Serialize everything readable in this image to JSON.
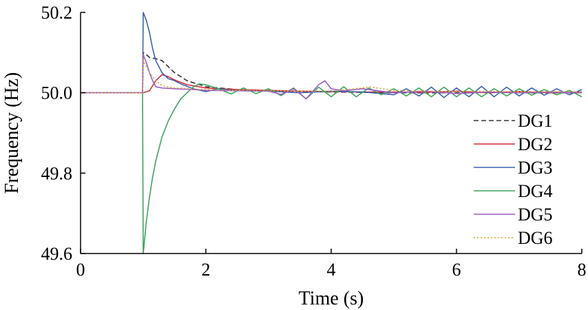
{
  "chart_data": {
    "type": "line",
    "xlabel": "Time (s)",
    "ylabel": "Frequency (Hz)",
    "xlim": [
      0,
      8
    ],
    "ylim": [
      49.6,
      50.2
    ],
    "x_ticks": [
      0,
      2,
      4,
      6,
      8
    ],
    "x_tick_labels": [
      "0",
      "2",
      "4",
      "6",
      "8"
    ],
    "y_ticks": [
      49.6,
      49.8,
      50.0,
      50.2
    ],
    "y_tick_labels": [
      "49.6",
      "49.8",
      "50.0",
      "50.2"
    ],
    "grid": false,
    "legend_position": "right",
    "series": [
      {
        "name": "DG1",
        "color": "#333333",
        "style": "dashed",
        "x": [
          0,
          0.99,
          1.0,
          1.05,
          1.1,
          1.2,
          1.3,
          1.4,
          1.5,
          1.7,
          2.0,
          2.5,
          3.0,
          3.5,
          4.0,
          4.5,
          5.0,
          5.5,
          6.0,
          6.5,
          7.0,
          7.5,
          8.0
        ],
        "y": [
          50.0,
          50.0,
          50.1,
          50.095,
          50.088,
          50.085,
          50.08,
          50.065,
          50.05,
          50.03,
          50.015,
          50.008,
          50.005,
          50.003,
          50.002,
          50.001,
          50.0,
          50.0,
          50.0,
          50.001,
          50.0,
          50.0,
          50.0
        ]
      },
      {
        "name": "DG2",
        "color": "#d62c3a",
        "style": "solid",
        "x": [
          0,
          0.99,
          1.0,
          1.1,
          1.2,
          1.3,
          1.4,
          1.5,
          1.7,
          2.0,
          2.5,
          3.0,
          3.5,
          4.0,
          4.5,
          5.0,
          5.5,
          6.0,
          6.5,
          7.0,
          7.5,
          8.0
        ],
        "y": [
          50.0,
          50.0,
          50.0,
          50.005,
          50.03,
          50.045,
          50.04,
          50.032,
          50.02,
          50.012,
          50.008,
          50.006,
          50.004,
          50.003,
          50.002,
          50.002,
          50.001,
          50.004,
          50.0,
          50.003,
          50.0,
          50.002
        ]
      },
      {
        "name": "DG3",
        "color": "#3b63b0",
        "style": "solid",
        "x": [
          0,
          0.99,
          1.0,
          1.05,
          1.1,
          1.15,
          1.2,
          1.3,
          1.4,
          1.5,
          1.6,
          1.8,
          2.0,
          2.2,
          2.5,
          3.0,
          3.5,
          4.0,
          4.5,
          5.0,
          5.2,
          5.4,
          5.6,
          5.8,
          6.0,
          6.2,
          6.4,
          6.6,
          6.8,
          7.0,
          7.2,
          7.4,
          7.6,
          7.8,
          8.0
        ],
        "y": [
          50.0,
          50.0,
          50.2,
          50.18,
          50.15,
          50.11,
          50.08,
          50.05,
          50.035,
          50.03,
          50.022,
          50.01,
          50.003,
          50.01,
          50.005,
          50.004,
          50.0,
          50.004,
          50.002,
          49.995,
          50.01,
          49.992,
          50.014,
          49.988,
          50.012,
          49.99,
          50.016,
          49.99,
          50.014,
          49.992,
          50.012,
          49.994,
          50.01,
          49.995,
          50.008
        ]
      },
      {
        "name": "DG4",
        "color": "#3fa45b",
        "style": "solid",
        "x": [
          0,
          0.99,
          1.0,
          1.02,
          1.05,
          1.1,
          1.15,
          1.2,
          1.3,
          1.4,
          1.5,
          1.6,
          1.7,
          1.8,
          1.9,
          2.0,
          2.2,
          2.4,
          2.6,
          2.8,
          3.0,
          3.2,
          3.4,
          3.6,
          3.8,
          4.0,
          4.2,
          4.4,
          4.6,
          4.8,
          5.0,
          5.2,
          5.4,
          5.6,
          5.8,
          6.0,
          6.2,
          6.4,
          6.6,
          6.8,
          7.0,
          7.2,
          7.4,
          7.6,
          7.8,
          8.0
        ],
        "y": [
          50.0,
          50.0,
          49.6,
          49.63,
          49.68,
          49.74,
          49.79,
          49.83,
          49.89,
          49.93,
          49.96,
          49.985,
          50.0,
          50.015,
          50.022,
          50.02,
          50.01,
          49.997,
          50.012,
          49.998,
          50.01,
          49.993,
          50.012,
          49.985,
          50.014,
          49.99,
          50.015,
          49.99,
          50.012,
          49.995,
          50.01,
          49.992,
          50.012,
          49.99,
          50.014,
          49.99,
          50.012,
          49.99,
          50.01,
          49.992,
          50.01,
          49.994,
          50.008,
          49.995,
          50.006,
          49.99
        ]
      },
      {
        "name": "DG5",
        "color": "#a05cc9",
        "style": "solid",
        "x": [
          0,
          0.99,
          1.0,
          1.05,
          1.1,
          1.15,
          1.2,
          1.3,
          1.5,
          1.8,
          2.0,
          2.5,
          3.0,
          3.2,
          3.4,
          3.6,
          3.8,
          3.9,
          4.0,
          4.2,
          4.5,
          5.0,
          5.5,
          6.0,
          6.5,
          7.0,
          7.5,
          8.0
        ],
        "y": [
          50.0,
          50.0,
          50.095,
          50.075,
          50.05,
          50.03,
          50.015,
          50.012,
          50.01,
          50.008,
          50.006,
          50.005,
          50.004,
          49.996,
          50.01,
          49.985,
          50.02,
          50.03,
          50.01,
          50.005,
          50.01,
          50.0,
          50.004,
          49.998,
          50.002,
          50.0,
          50.002,
          50.0
        ]
      },
      {
        "name": "DG6",
        "color": "#d9a12b",
        "style": "dotted",
        "x": [
          0,
          0.99,
          1.0,
          1.1,
          1.2,
          1.3,
          1.5,
          2.0,
          2.5,
          3.0,
          3.5,
          4.0,
          4.5,
          4.6,
          5.0,
          5.5,
          6.0,
          6.5,
          7.0,
          7.5,
          8.0
        ],
        "y": [
          50.0,
          50.0,
          50.08,
          50.05,
          50.03,
          50.018,
          50.012,
          50.008,
          50.006,
          50.005,
          50.004,
          50.004,
          50.012,
          50.015,
          50.006,
          50.004,
          50.003,
          50.004,
          50.002,
          50.003,
          50.002
        ]
      }
    ]
  }
}
